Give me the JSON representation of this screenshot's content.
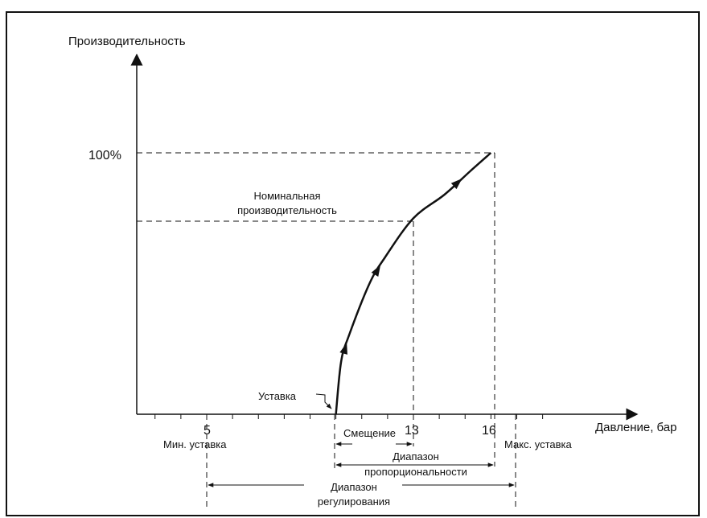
{
  "colors": {
    "ink": "#111111",
    "background": "#ffffff"
  },
  "axes": {
    "y_label": "Производительность",
    "x_label": "Давление, бар",
    "y_tick_100": "100%"
  },
  "x_ticks": {
    "t5": "5",
    "t13": "13",
    "t16": "16"
  },
  "labels": {
    "nominal_line1": "Номинальная",
    "nominal_line2": "производительность",
    "setpoint": "Уставка",
    "offset": "Смещение",
    "min_setpoint": "Мин. уставка",
    "max_setpoint": "Макс. уставка",
    "prop_range_line1": "Диапазон",
    "prop_range_line2": "пропорциональности",
    "reg_range_line1": "Диапазон",
    "reg_range_line2": "регулирования"
  },
  "curve": {
    "x": [
      10,
      10.2,
      10.5,
      11.3,
      11.9,
      13.0,
      14.2,
      15.2,
      16.0
    ],
    "y": [
      0,
      20,
      30,
      50,
      60,
      75,
      84,
      93,
      100
    ]
  },
  "values": {
    "setpoint_bar": 10,
    "nominal_bar": 13,
    "nominal_pct": 75,
    "max_bar": 16,
    "max_pct": 100,
    "min_setpoint_bar": 5,
    "max_setpoint_bar": 16.8
  },
  "icons": {
    "arrowhead": "arrowhead-icon"
  }
}
